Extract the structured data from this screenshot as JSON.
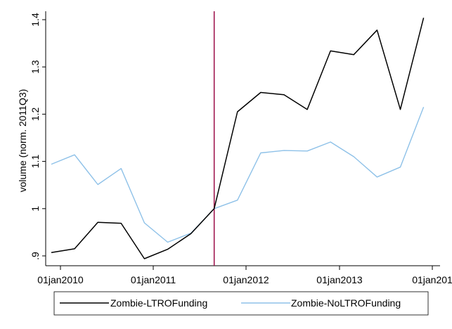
{
  "chart_data": {
    "type": "line",
    "title": "",
    "xlabel": "",
    "ylabel": "volume (norm. 2011Q3)",
    "x": [
      "2009Q4",
      "2010Q1",
      "2010Q2",
      "2010Q3",
      "2010Q4",
      "2011Q1",
      "2011Q2",
      "2011Q3",
      "2011Q4",
      "2012Q1",
      "2012Q2",
      "2012Q3",
      "2012Q4",
      "2013Q1",
      "2013Q2",
      "2013Q3",
      "2013Q4"
    ],
    "series": [
      {
        "name": "Zombie-LTROFunding",
        "color": "#000000",
        "values": [
          0.907,
          0.915,
          0.971,
          0.969,
          0.894,
          0.914,
          0.947,
          1.0,
          1.205,
          1.246,
          1.241,
          1.21,
          1.334,
          1.326,
          1.378,
          1.21,
          1.404
        ]
      },
      {
        "name": "Zombie-NoLTROFunding",
        "color": "#8ec1e8",
        "values": [
          1.094,
          1.114,
          1.051,
          1.085,
          0.97,
          0.929,
          0.948,
          1.0,
          1.018,
          1.118,
          1.123,
          1.122,
          1.141,
          1.11,
          1.067,
          1.088,
          1.215
        ]
      }
    ],
    "ylim": [
      0.9,
      1.4
    ],
    "yticks": [
      {
        "value": 0.9,
        "label": ".9"
      },
      {
        "value": 1.0,
        "label": "1"
      },
      {
        "value": 1.1,
        "label": "1.1"
      },
      {
        "value": 1.2,
        "label": "1.2"
      },
      {
        "value": 1.3,
        "label": "1.3"
      },
      {
        "value": 1.4,
        "label": "1.4"
      }
    ],
    "xticks": [
      {
        "label": "01jan2010"
      },
      {
        "label": "01jan2011"
      },
      {
        "label": "01jan2012"
      },
      {
        "label": "01jan2013"
      },
      {
        "label": "01jan201"
      }
    ],
    "reference_line": {
      "x": "2011Q3",
      "color": "#a01850"
    },
    "grid": false,
    "legend_position": "bottom"
  }
}
